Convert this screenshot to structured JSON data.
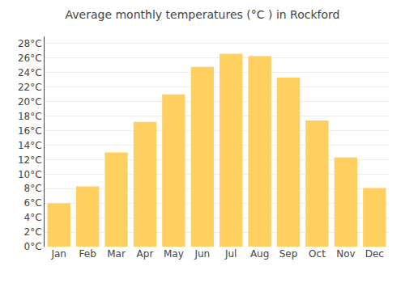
{
  "chart_data": {
    "type": "bar",
    "title": "Average monthly temperatures (°C ) in Rockford",
    "categories": [
      "Jan",
      "Feb",
      "Mar",
      "Apr",
      "May",
      "Jun",
      "Jul",
      "Aug",
      "Sep",
      "Oct",
      "Nov",
      "Dec"
    ],
    "values": [
      6.0,
      8.3,
      13.0,
      17.2,
      21.0,
      24.8,
      26.6,
      26.3,
      23.3,
      17.4,
      12.3,
      8.1
    ],
    "color": "#FFD060",
    "ylim": [
      0,
      29
    ],
    "yticks": [
      {
        "value": 0,
        "label": "0°C"
      },
      {
        "value": 2,
        "label": "2°C"
      },
      {
        "value": 4,
        "label": "4°C"
      },
      {
        "value": 6,
        "label": "6°C"
      },
      {
        "value": 8,
        "label": "8°C"
      },
      {
        "value": 10,
        "label": "10°C"
      },
      {
        "value": 12,
        "label": "12°C"
      },
      {
        "value": 14,
        "label": "14°C"
      },
      {
        "value": 16,
        "label": "16°C"
      },
      {
        "value": 18,
        "label": "18°C"
      },
      {
        "value": 20,
        "label": "20°C"
      },
      {
        "value": 22,
        "label": "22°C"
      },
      {
        "value": 24,
        "label": "24°C"
      },
      {
        "value": 26,
        "label": "26°C"
      },
      {
        "value": 28,
        "label": "28°C"
      }
    ],
    "grid": true
  }
}
